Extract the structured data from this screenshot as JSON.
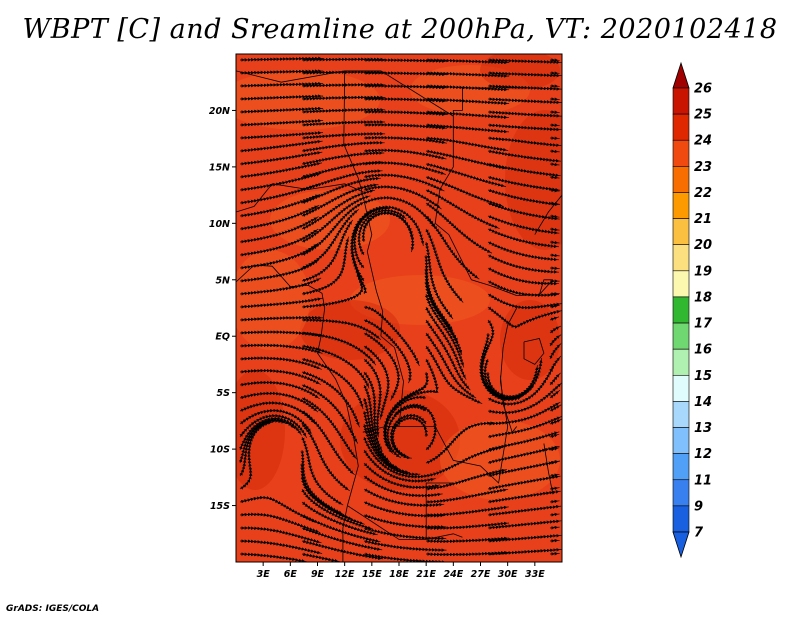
{
  "title": "WBPT [C] and Sreamline at 200hPa, VT: 2020102418",
  "footer": "GrADS: IGES/COLA",
  "map": {
    "lon_range": [
      0,
      36
    ],
    "lat_range": [
      -20,
      25
    ],
    "lat_ticks": [
      {
        "value": 20,
        "label": "20N"
      },
      {
        "value": 15,
        "label": "15N"
      },
      {
        "value": 10,
        "label": "10N"
      },
      {
        "value": 5,
        "label": "5N"
      },
      {
        "value": 0,
        "label": "EQ"
      },
      {
        "value": -5,
        "label": "5S"
      },
      {
        "value": -10,
        "label": "10S"
      },
      {
        "value": -15,
        "label": "15S"
      }
    ],
    "lon_ticks": [
      {
        "value": 3,
        "label": "3E"
      },
      {
        "value": 6,
        "label": "6E"
      },
      {
        "value": 9,
        "label": "9E"
      },
      {
        "value": 12,
        "label": "12E"
      },
      {
        "value": 15,
        "label": "15E"
      },
      {
        "value": 18,
        "label": "18E"
      },
      {
        "value": 21,
        "label": "21E"
      },
      {
        "value": 24,
        "label": "24E"
      },
      {
        "value": 27,
        "label": "27E"
      },
      {
        "value": 30,
        "label": "30E"
      },
      {
        "value": 33,
        "label": "33E"
      }
    ],
    "fill_colors": {
      "base": "#e8401a",
      "dark": "#d42c0c",
      "light": "#f05a20"
    }
  },
  "colorbar": {
    "levels": [
      {
        "label": "26",
        "color": "#a00000"
      },
      {
        "label": "25",
        "color": "#c81400"
      },
      {
        "label": "24",
        "color": "#e02800"
      },
      {
        "label": "23",
        "color": "#f04a10"
      },
      {
        "label": "22",
        "color": "#f86e00"
      },
      {
        "label": "21",
        "color": "#fc9a00"
      },
      {
        "label": "20",
        "color": "#fcc040"
      },
      {
        "label": "19",
        "color": "#fce080"
      },
      {
        "label": "18",
        "color": "#fcf8b0"
      },
      {
        "label": "17",
        "color": "#30b830"
      },
      {
        "label": "16",
        "color": "#70d870"
      },
      {
        "label": "15",
        "color": "#b0f0b0"
      },
      {
        "label": "14",
        "color": "#e0fcfc"
      },
      {
        "label": "13",
        "color": "#a8d8fc"
      },
      {
        "label": "12",
        "color": "#80c0fc"
      },
      {
        "label": "11",
        "color": "#50a0f8"
      },
      {
        "label": "9",
        "color": "#3880f0"
      },
      {
        "label": "7",
        "color": "#1860e0"
      }
    ],
    "top_color": "#a00000",
    "bottom_color": "#1860e0"
  }
}
